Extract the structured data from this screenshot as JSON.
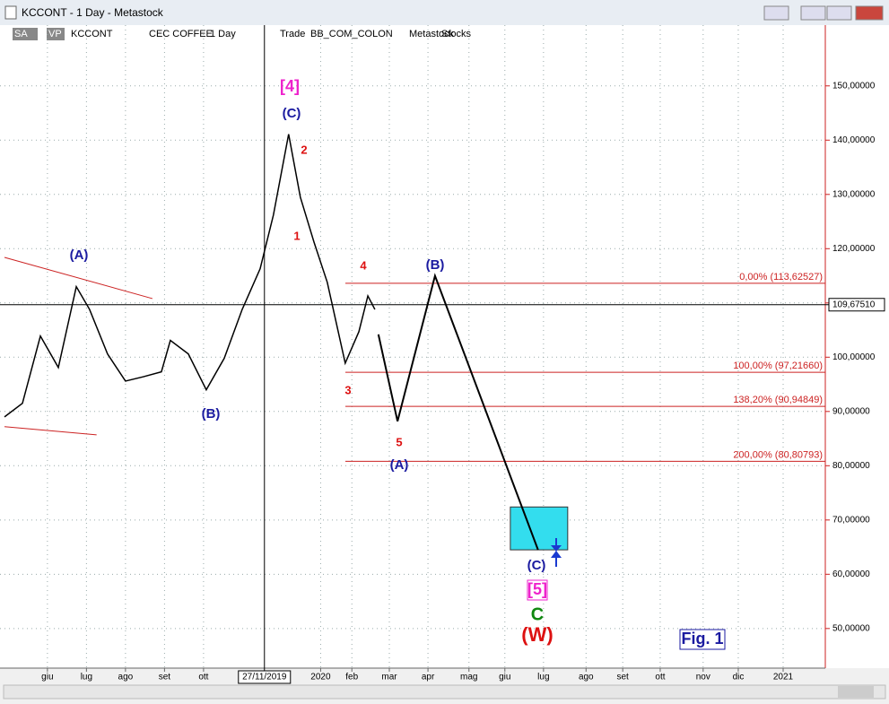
{
  "window": {
    "title": "KCCONT - 1 Day - Metastock"
  },
  "toolbar": {
    "items": [
      "SA",
      "VP",
      "KCCONT",
      "CEC COFFEE",
      "1 Day",
      "Trade",
      "BB_COM_COLON",
      "Metastock",
      "Stocks"
    ]
  },
  "chart_data": {
    "type": "line",
    "grid": true,
    "xlim": [
      -1.1,
      19.93
    ],
    "ylim": [
      42.7,
      161.2
    ],
    "xticks": [
      {
        "value": 0,
        "label": "giu"
      },
      {
        "value": 1,
        "label": "lug"
      },
      {
        "value": 2,
        "label": "ago"
      },
      {
        "value": 3,
        "label": "set"
      },
      {
        "value": 4,
        "label": "ott"
      },
      {
        "value": 7,
        "label": "2020"
      },
      {
        "value": 7.8,
        "label": "feb"
      },
      {
        "value": 8.76,
        "label": "mar"
      },
      {
        "value": 9.75,
        "label": "apr"
      },
      {
        "value": 10.8,
        "label": "mag"
      },
      {
        "value": 11.72,
        "label": "giu"
      },
      {
        "value": 12.71,
        "label": "lug"
      },
      {
        "value": 13.8,
        "label": "ago"
      },
      {
        "value": 14.74,
        "label": "set"
      },
      {
        "value": 15.7,
        "label": "ott"
      },
      {
        "value": 16.8,
        "label": "nov"
      },
      {
        "value": 17.7,
        "label": "dic"
      },
      {
        "value": 18.85,
        "label": "2021"
      }
    ],
    "yticks": [
      {
        "value": 50,
        "label": "50,00000"
      },
      {
        "value": 60,
        "label": "60,00000"
      },
      {
        "value": 70,
        "label": "70,00000"
      },
      {
        "value": 80,
        "label": "80,00000"
      },
      {
        "value": 90,
        "label": "90,00000"
      },
      {
        "value": 100,
        "label": "100,00000"
      },
      {
        "value": 110,
        "label": "110,00000"
      },
      {
        "value": 120,
        "label": "120,00000"
      },
      {
        "value": 130,
        "label": "130,00000"
      },
      {
        "value": 140,
        "label": "140,00000"
      },
      {
        "value": 150,
        "label": "150,00000"
      }
    ],
    "series": [
      {
        "name": "KCCONT",
        "color": "#000000",
        "x": [
          -1.1,
          -0.64,
          -0.18,
          0.28,
          0.74,
          1.08,
          1.54,
          2.0,
          2.46,
          2.92,
          3.15,
          3.61,
          4.07,
          4.53,
          4.99,
          5.45,
          5.79,
          6.18,
          6.48,
          6.83,
          7.17,
          7.63,
          7.98,
          8.21,
          8.39
        ],
        "values": [
          89.0,
          91.5,
          103.9,
          98.1,
          113.0,
          108.8,
          100.6,
          95.6,
          96.4,
          97.3,
          103.1,
          100.6,
          94.0,
          99.8,
          108.8,
          116.3,
          126.2,
          141.1,
          129.5,
          121.2,
          113.8,
          98.9,
          104.7,
          111.3,
          108.8
        ]
      },
      {
        "color": "#000000",
        "x": [
          8.48,
          8.97,
          9.93,
          12.57
        ],
        "values": [
          104.2,
          88.2,
          115.0,
          64.5
        ]
      }
    ],
    "levels": [
      {
        "value": 113.62527,
        "label": "0,00% (113,62527)"
      },
      {
        "value": 97.2166,
        "label": "100,00% (97,21660)"
      },
      {
        "value": 90.94849,
        "label": "138,20% (90,94849)"
      },
      {
        "value": 80.80793,
        "label": "200,00% (80,80793)"
      }
    ],
    "level_color": "#cc2222",
    "last_price": {
      "value": 109.6751,
      "label": "109,67510"
    },
    "crosshair": {
      "x": 5.56,
      "label": "27/11/2019"
    },
    "trendlines": [
      {
        "x": [
          -1.1,
          2.69
        ],
        "values": [
          118.4,
          110.8
        ],
        "color": "#cc2222"
      },
      {
        "x": [
          -1.1,
          1.26
        ],
        "values": [
          87.2,
          85.7
        ],
        "color": "#cc2222"
      }
    ],
    "target_zone": {
      "x": [
        11.86,
        13.33
      ],
      "values": [
        64.5,
        72.4
      ],
      "color": "#33ddee"
    },
    "annotations": [
      {
        "text": "[4]",
        "color": "#ee22cc"
      },
      {
        "text": "(C)",
        "color": "#1a1aa0"
      },
      {
        "text": "2",
        "color": "#dd1111"
      },
      {
        "text": "1",
        "color": "#dd1111"
      },
      {
        "text": "(A)",
        "color": "#1a1aa0"
      },
      {
        "text": "(B)",
        "color": "#1a1aa0"
      },
      {
        "text": "4",
        "color": "#dd1111"
      },
      {
        "text": "(B)",
        "color": "#1a1aa0"
      },
      {
        "text": "3",
        "color": "#dd1111"
      },
      {
        "text": "5",
        "color": "#dd1111"
      },
      {
        "text": "(A)",
        "color": "#1a1aa0"
      },
      {
        "text": "(C)",
        "color": "#1a1aa0"
      },
      {
        "text": "[5]",
        "color": "#ee22cc"
      },
      {
        "text": "C",
        "color": "#118811"
      },
      {
        "text": "(W)",
        "color": "#dd1111"
      },
      {
        "text": "Fig. 1",
        "color": "#1a1aa0"
      }
    ]
  }
}
